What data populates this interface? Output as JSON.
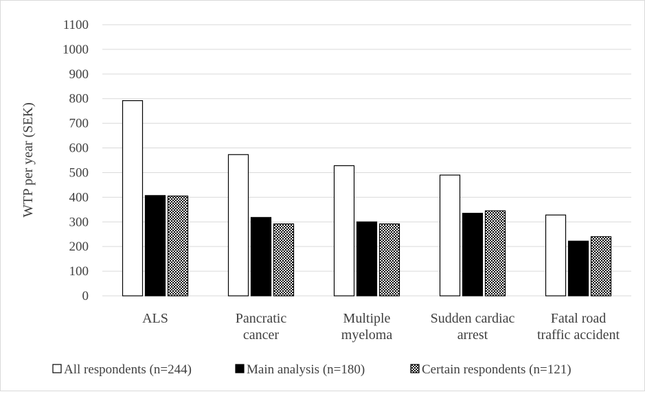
{
  "chart_data": {
    "type": "bar",
    "ylabel": "WTP per year (SEK)",
    "ylim": [
      0,
      1100
    ],
    "yticks": [
      0,
      100,
      200,
      300,
      400,
      500,
      600,
      700,
      800,
      900,
      1000,
      1100
    ],
    "grid": true,
    "legend_position": "bottom",
    "categories": [
      [
        "ALS"
      ],
      [
        "Pancratic",
        "cancer"
      ],
      [
        "Multiple",
        "myeloma"
      ],
      [
        "Sudden cardiac",
        "arrest"
      ],
      [
        "Fatal road",
        "traffic accident"
      ]
    ],
    "series": [
      {
        "name": "All respondents (n=244)",
        "values": [
          792,
          573,
          528,
          490,
          328
        ],
        "fill": "white"
      },
      {
        "name": "Main analysis (n=180)",
        "values": [
          407,
          318,
          300,
          335,
          222
        ],
        "fill": "black"
      },
      {
        "name": "Certain respondents (n=121)",
        "values": [
          405,
          292,
          292,
          345,
          240
        ],
        "fill": "pattern"
      }
    ]
  },
  "colors": {
    "axis_text": "#404040",
    "gridline": "#d9d9d9",
    "bar_outline": "#000000",
    "bar_black": "#000000",
    "bar_white": "#ffffff"
  }
}
